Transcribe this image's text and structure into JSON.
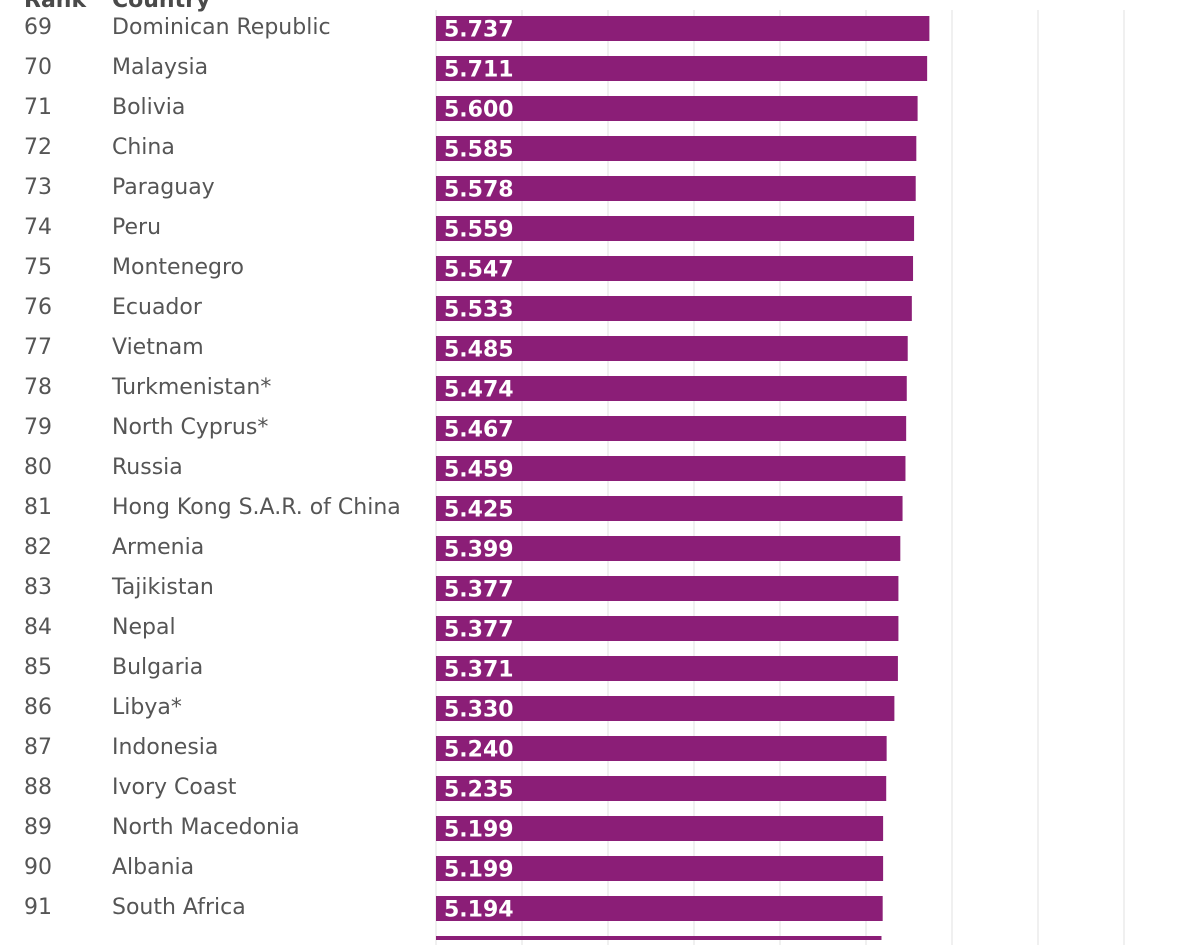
{
  "header": {
    "rank_label": "Rank",
    "country_label": "Country"
  },
  "colors": {
    "bar": "#8b1e77",
    "grid": "#e2e2e2",
    "text": "#555555"
  },
  "chart_data": {
    "type": "bar",
    "orientation": "horizontal",
    "xlim": [
      0,
      8
    ],
    "grid": true,
    "categories": [
      "Dominican Republic",
      "Malaysia",
      "Bolivia",
      "China",
      "Paraguay",
      "Peru",
      "Montenegro",
      "Ecuador",
      "Vietnam",
      "Turkmenistan*",
      "North Cyprus*",
      "Russia",
      "Hong Kong S.A.R. of China",
      "Armenia",
      "Tajikistan",
      "Nepal",
      "Bulgaria",
      "Libya*",
      "Indonesia",
      "Ivory Coast",
      "North Macedonia",
      "Albania",
      "South Africa"
    ],
    "ranks": [
      "69",
      "70",
      "71",
      "72",
      "73",
      "74",
      "75",
      "76",
      "77",
      "78",
      "79",
      "80",
      "81",
      "82",
      "83",
      "84",
      "85",
      "86",
      "87",
      "88",
      "89",
      "90",
      "91"
    ],
    "values": [
      5.737,
      5.711,
      5.6,
      5.585,
      5.578,
      5.559,
      5.547,
      5.533,
      5.485,
      5.474,
      5.467,
      5.459,
      5.425,
      5.399,
      5.377,
      5.377,
      5.371,
      5.33,
      5.24,
      5.235,
      5.199,
      5.199,
      5.194
    ],
    "labels": [
      "5.737",
      "5.711",
      "5.600",
      "5.585",
      "5.578",
      "5.559",
      "5.547",
      "5.533",
      "5.485",
      "5.474",
      "5.467",
      "5.459",
      "5.425",
      "5.399",
      "5.377",
      "5.377",
      "5.371",
      "5.330",
      "5.240",
      "5.235",
      "5.199",
      "5.199",
      "5.194"
    ]
  }
}
